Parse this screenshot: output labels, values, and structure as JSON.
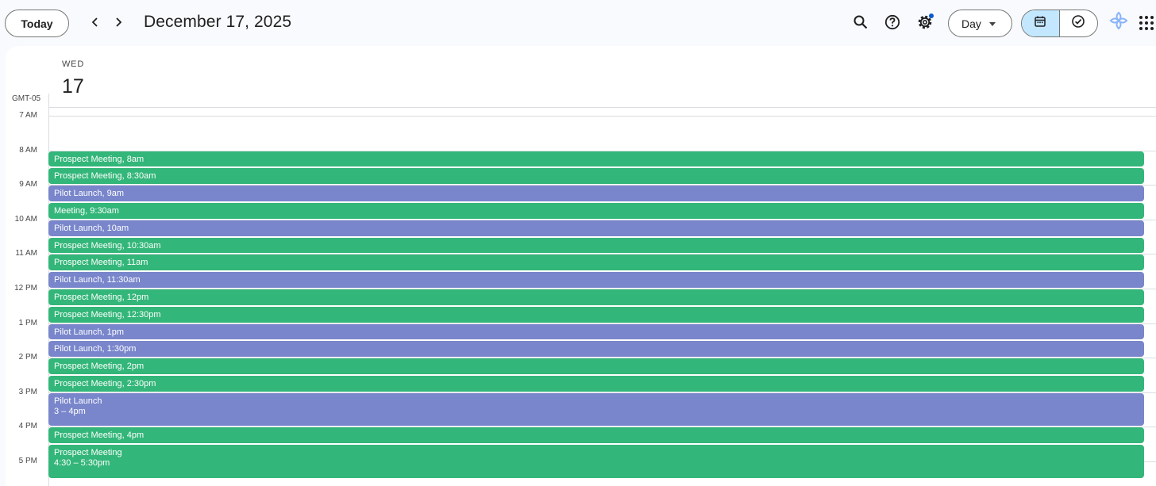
{
  "toolbar": {
    "today_label": "Today",
    "date_title": "December 17, 2025",
    "view_label": "Day",
    "icons": [
      "chevron-left-icon",
      "chevron-right-icon",
      "search-icon",
      "help-icon",
      "settings-icon",
      "calendar-icon",
      "tasks-check-icon",
      "gemini-icon",
      "apps-grid-icon"
    ],
    "notification_dot_color": "#0b57d0"
  },
  "day": {
    "dow": "WED",
    "dom": "17",
    "timezone": "GMT-05"
  },
  "hours": [
    "7 AM",
    "8 AM",
    "9 AM",
    "10 AM",
    "11 AM",
    "12 PM",
    "1 PM",
    "2 PM",
    "3 PM",
    "4 PM",
    "5 PM"
  ],
  "colors": {
    "green": "#33b679",
    "purple": "#7986cb",
    "active_view": "#c2e7ff"
  },
  "events": [
    {
      "title": "Prospect Meeting",
      "time": "8am",
      "color": "green",
      "start": 8.0,
      "end": 8.5,
      "layout": "inline"
    },
    {
      "title": "Prospect Meeting",
      "time": "8:30am",
      "color": "green",
      "start": 8.5,
      "end": 9.0,
      "layout": "inline"
    },
    {
      "title": "Pilot Launch",
      "time": "9am",
      "color": "purple",
      "start": 9.0,
      "end": 9.5,
      "layout": "inline"
    },
    {
      "title": "Meeting",
      "time": "9:30am",
      "color": "green",
      "start": 9.5,
      "end": 10.0,
      "layout": "inline"
    },
    {
      "title": "Pilot Launch",
      "time": "10am",
      "color": "purple",
      "start": 10.0,
      "end": 10.5,
      "layout": "inline"
    },
    {
      "title": "Prospect Meeting",
      "time": "10:30am",
      "color": "green",
      "start": 10.5,
      "end": 11.0,
      "layout": "inline"
    },
    {
      "title": "Prospect Meeting",
      "time": "11am",
      "color": "green",
      "start": 11.0,
      "end": 11.5,
      "layout": "inline"
    },
    {
      "title": "Pilot Launch",
      "time": "11:30am",
      "color": "purple",
      "start": 11.5,
      "end": 12.0,
      "layout": "inline"
    },
    {
      "title": "Prospect Meeting",
      "time": "12pm",
      "color": "green",
      "start": 12.0,
      "end": 12.5,
      "layout": "inline"
    },
    {
      "title": "Prospect Meeting",
      "time": "12:30pm",
      "color": "green",
      "start": 12.5,
      "end": 13.0,
      "layout": "inline"
    },
    {
      "title": "Pilot Launch",
      "time": "1pm",
      "color": "purple",
      "start": 13.0,
      "end": 13.5,
      "layout": "inline"
    },
    {
      "title": "Pilot Launch",
      "time": "1:30pm",
      "color": "purple",
      "start": 13.5,
      "end": 14.0,
      "layout": "inline"
    },
    {
      "title": "Prospect Meeting",
      "time": "2pm",
      "color": "green",
      "start": 14.0,
      "end": 14.5,
      "layout": "inline"
    },
    {
      "title": "Prospect Meeting",
      "time": "2:30pm",
      "color": "green",
      "start": 14.5,
      "end": 15.0,
      "layout": "inline"
    },
    {
      "title": "Pilot Launch",
      "time": "3 – 4pm",
      "color": "purple",
      "start": 15.0,
      "end": 16.0,
      "layout": "block"
    },
    {
      "title": "Prospect Meeting",
      "time": "4pm",
      "color": "green",
      "start": 16.0,
      "end": 16.5,
      "layout": "inline"
    },
    {
      "title": "Prospect Meeting",
      "time": "4:30 – 5:30pm",
      "color": "green",
      "start": 16.5,
      "end": 17.5,
      "layout": "block"
    }
  ]
}
